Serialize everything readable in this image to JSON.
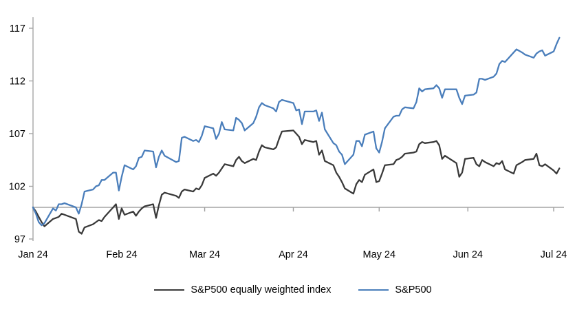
{
  "chart_data": {
    "type": "line",
    "title": "",
    "xlabel": "",
    "ylabel": "",
    "x_unit": "days since 2024-01-01",
    "x_tick_days": [
      0,
      31,
      60,
      91,
      121,
      152,
      182
    ],
    "x_tick_labels": [
      "Jan 24",
      "Feb 24",
      "Mar 24",
      "Apr 24",
      "May 24",
      "Jun 24",
      "Jul 24"
    ],
    "y_ticks": [
      97,
      102,
      107,
      112,
      117
    ],
    "ylim": [
      97,
      117
    ],
    "baseline_value": 100,
    "grid": false,
    "legend_position": "bottom",
    "axis_color": "#a6a6a6",
    "baseline_color": "#a0a0a0",
    "days": [
      0,
      1,
      2,
      3,
      4,
      7,
      8,
      9,
      10,
      11,
      15,
      16,
      17,
      18,
      21,
      22,
      23,
      24,
      25,
      28,
      29,
      30,
      31,
      32,
      35,
      36,
      37,
      38,
      39,
      42,
      43,
      44,
      45,
      46,
      50,
      51,
      52,
      53,
      56,
      57,
      58,
      59,
      60,
      63,
      64,
      65,
      66,
      67,
      70,
      71,
      72,
      73,
      74,
      77,
      78,
      79,
      80,
      81,
      84,
      85,
      86,
      87,
      91,
      92,
      93,
      94,
      95,
      98,
      99,
      100,
      101,
      102,
      105,
      106,
      107,
      108,
      109,
      112,
      113,
      114,
      115,
      116,
      119,
      120,
      121,
      122,
      123,
      126,
      127,
      128,
      129,
      130,
      133,
      134,
      135,
      136,
      137,
      140,
      141,
      142,
      143,
      144,
      148,
      149,
      150,
      151,
      154,
      155,
      156,
      157,
      158,
      161,
      162,
      163,
      164,
      165,
      168,
      169,
      171,
      172,
      175,
      176,
      177,
      178,
      179,
      182,
      183,
      184
    ],
    "series": [
      {
        "name": "S&P500 equally weighted index",
        "color": "#3a3a3a",
        "values": [
          100.0,
          99.6,
          99.1,
          98.6,
          98.2,
          98.9,
          99.0,
          99.1,
          99.4,
          99.3,
          98.9,
          97.7,
          97.5,
          98.1,
          98.4,
          98.6,
          98.8,
          98.7,
          99.1,
          100.0,
          100.3,
          98.9,
          99.9,
          99.3,
          99.6,
          99.2,
          99.6,
          99.9,
          100.1,
          100.3,
          99.0,
          100.2,
          101.2,
          101.4,
          101.1,
          100.9,
          101.5,
          101.7,
          101.5,
          101.8,
          101.7,
          102.1,
          102.8,
          103.2,
          103.0,
          103.3,
          103.7,
          104.1,
          103.9,
          104.5,
          104.8,
          104.4,
          104.2,
          104.6,
          104.5,
          105.3,
          105.9,
          105.7,
          105.5,
          105.7,
          106.5,
          107.2,
          107.3,
          107.0,
          106.7,
          106.0,
          106.4,
          106.2,
          106.3,
          105.0,
          105.4,
          104.4,
          104.0,
          103.3,
          102.9,
          102.4,
          101.8,
          101.3,
          102.2,
          102.6,
          102.4,
          103.1,
          103.6,
          102.4,
          102.5,
          103.2,
          104.0,
          104.1,
          104.5,
          104.6,
          104.8,
          105.1,
          105.2,
          105.3,
          106.0,
          106.2,
          106.1,
          106.2,
          106.3,
          105.9,
          104.6,
          104.9,
          104.2,
          102.9,
          103.3,
          104.6,
          104.7,
          104.1,
          103.9,
          104.5,
          104.3,
          103.9,
          104.2,
          104.1,
          104.4,
          103.6,
          103.2,
          104.0,
          104.3,
          104.5,
          104.6,
          105.1,
          104.0,
          103.9,
          104.1,
          103.5,
          103.2,
          103.7
        ]
      },
      {
        "name": "S&P500",
        "color": "#4a7ebb",
        "values": [
          100.0,
          99.4,
          98.6,
          98.3,
          98.5,
          99.9,
          99.7,
          100.3,
          100.3,
          100.4,
          100.0,
          99.4,
          100.3,
          101.5,
          101.7,
          102.0,
          102.1,
          102.6,
          102.6,
          103.3,
          103.3,
          101.6,
          102.9,
          104.0,
          103.6,
          103.9,
          104.7,
          104.8,
          105.4,
          105.3,
          103.8,
          104.8,
          105.4,
          104.9,
          104.3,
          104.4,
          106.6,
          106.7,
          106.3,
          106.4,
          106.2,
          106.8,
          107.7,
          107.5,
          106.5,
          107.0,
          108.1,
          107.4,
          107.3,
          108.5,
          108.3,
          108.0,
          107.3,
          108.0,
          108.6,
          109.5,
          109.9,
          109.7,
          109.4,
          109.1,
          110.0,
          110.2,
          109.9,
          109.2,
          109.3,
          107.9,
          109.1,
          109.1,
          109.2,
          108.2,
          109.0,
          107.4,
          106.1,
          105.9,
          105.3,
          105.0,
          104.1,
          105.0,
          106.3,
          106.3,
          105.8,
          106.9,
          107.2,
          105.6,
          105.2,
          106.2,
          107.5,
          108.6,
          108.7,
          108.7,
          109.3,
          109.5,
          109.4,
          110.0,
          111.3,
          111.0,
          111.2,
          111.3,
          111.6,
          111.3,
          110.4,
          111.2,
          111.2,
          110.4,
          109.8,
          110.6,
          110.7,
          110.9,
          112.2,
          112.2,
          112.1,
          112.4,
          112.7,
          113.6,
          113.9,
          113.8,
          114.7,
          115.0,
          114.7,
          114.5,
          114.2,
          114.6,
          114.8,
          114.9,
          114.4,
          114.8,
          115.5,
          116.1
        ]
      }
    ]
  }
}
